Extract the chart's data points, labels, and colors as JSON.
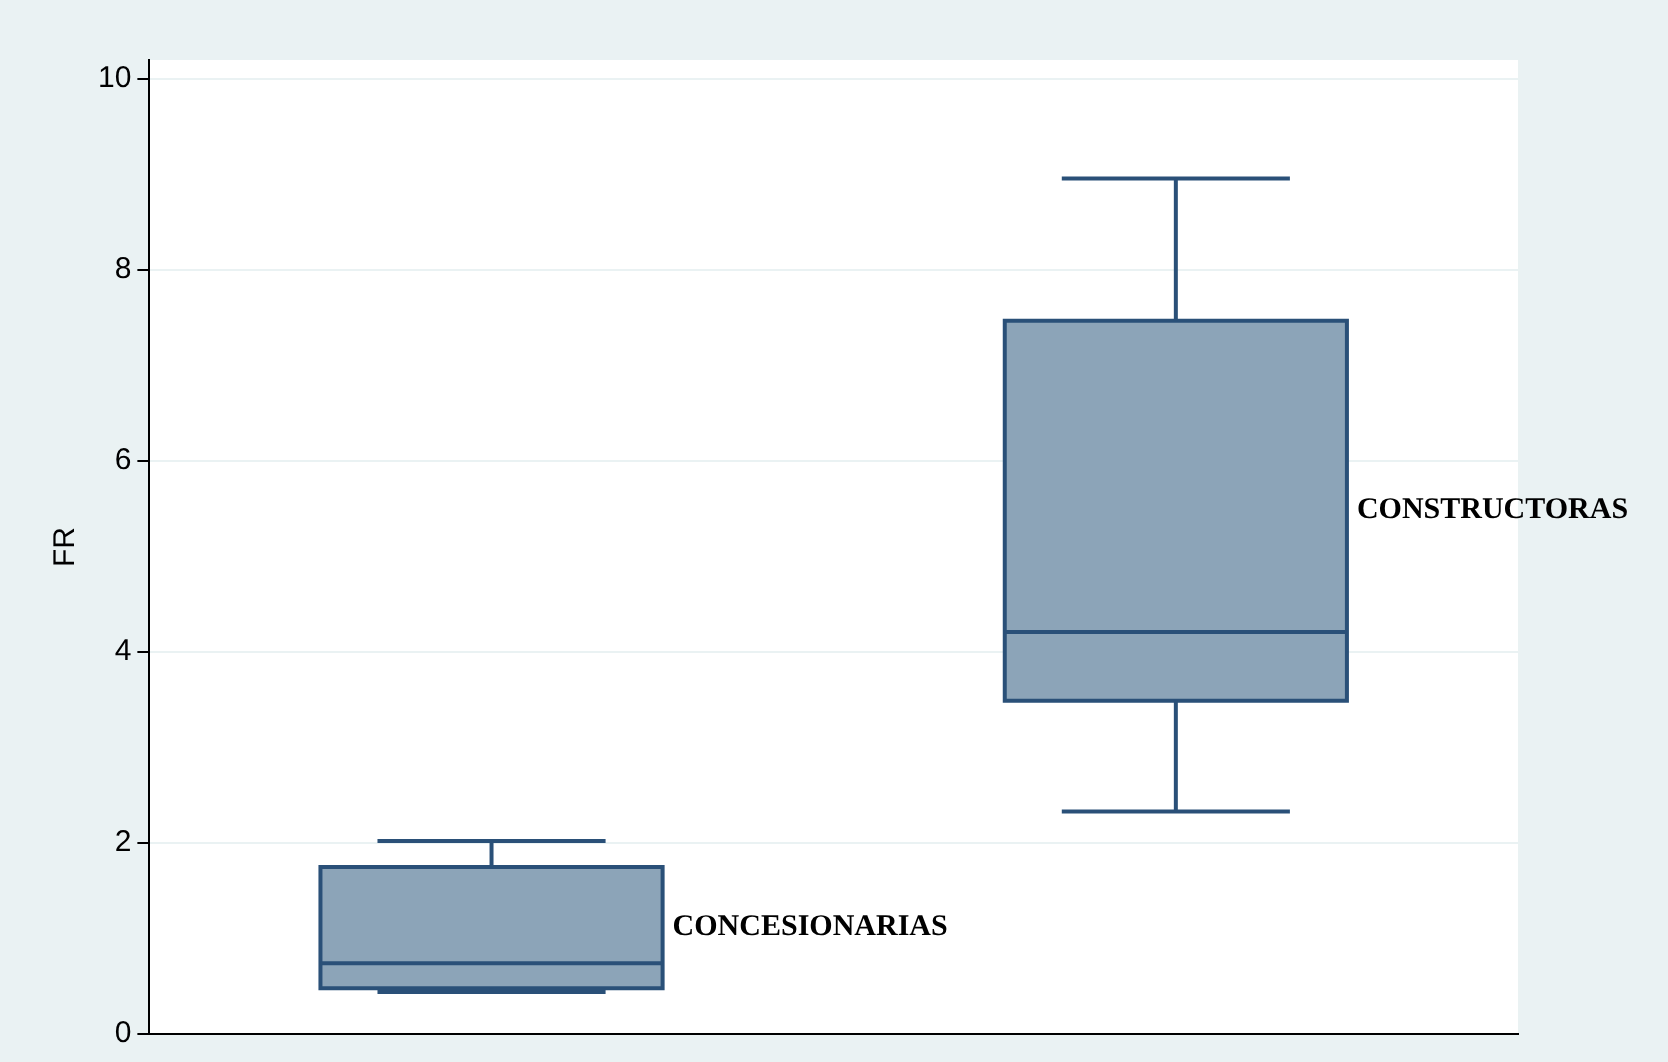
{
  "chart_data": {
    "type": "box",
    "ylabel": "FR",
    "categories": [
      "CONCESIONARIAS",
      "CONSTRUCTORAS"
    ],
    "boxes": [
      {
        "low": 0.44,
        "q1": 0.48,
        "median": 0.74,
        "q3": 1.75,
        "high": 2.02
      },
      {
        "low": 2.33,
        "q1": 3.49,
        "median": 4.21,
        "q3": 7.47,
        "high": 8.96
      }
    ],
    "color": "#8ca4b8",
    "ylim": [
      0,
      10.2
    ],
    "yticks": [
      0,
      2,
      4,
      6,
      8,
      10
    ],
    "grid": "y",
    "tick_labels": "y"
  }
}
